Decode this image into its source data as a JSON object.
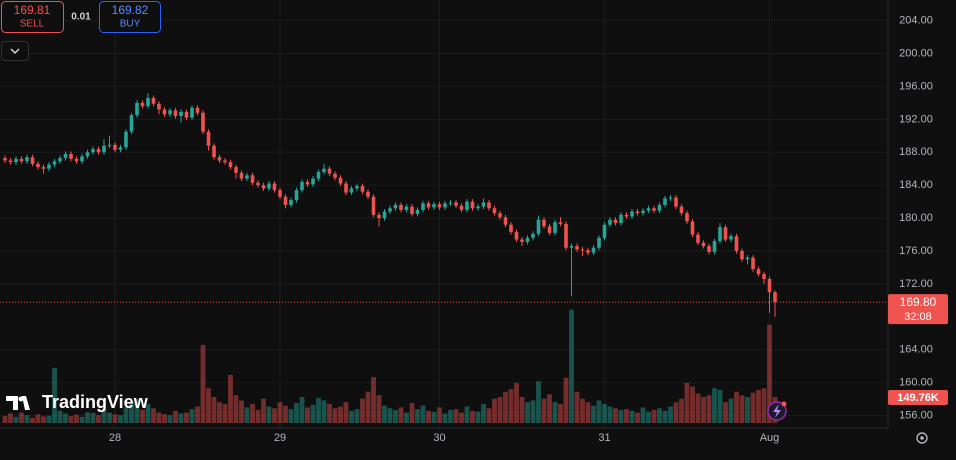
{
  "toolbar": {
    "sell_price": "169.81",
    "sell_label": "SELL",
    "spread": "0.01",
    "buy_price": "169.82",
    "buy_label": "BUY"
  },
  "logo": "TradingView",
  "chart_data": {
    "type": "candlestick",
    "up_color": "#26a69a",
    "down_color": "#ef5350",
    "grid": true,
    "ylim": [
      154.5,
      206.5
    ],
    "yticks": [
      {
        "value": 156,
        "label": "156.00"
      },
      {
        "value": 160,
        "label": "160.00"
      },
      {
        "value": 164,
        "label": "164.00"
      },
      {
        "value": 172,
        "label": "172.00"
      },
      {
        "value": 176,
        "label": "176.00"
      },
      {
        "value": 180,
        "label": "180.00"
      },
      {
        "value": 184,
        "label": "184.00"
      },
      {
        "value": 188,
        "label": "188.00"
      },
      {
        "value": 192,
        "label": "192.00"
      },
      {
        "value": 196,
        "label": "196.00"
      },
      {
        "value": 200,
        "label": "200.00"
      },
      {
        "value": 204,
        "label": "204.00"
      }
    ],
    "volume_lim": [
      0,
      1000
    ],
    "last_price": {
      "value": 169.8,
      "label": "169.80"
    },
    "countdown": "32:08",
    "last_volume_label": "149.76K",
    "categories": [
      null,
      null,
      null,
      null,
      null,
      null,
      null,
      null,
      null,
      null,
      null,
      null,
      null,
      null,
      null,
      null,
      null,
      null,
      null,
      null,
      "28",
      null,
      null,
      null,
      null,
      null,
      null,
      null,
      null,
      null,
      null,
      null,
      null,
      null,
      null,
      null,
      null,
      null,
      null,
      null,
      null,
      null,
      null,
      null,
      null,
      null,
      null,
      null,
      null,
      null,
      "29",
      null,
      null,
      null,
      null,
      null,
      null,
      null,
      null,
      null,
      null,
      null,
      null,
      null,
      null,
      null,
      null,
      null,
      null,
      null,
      null,
      null,
      null,
      null,
      null,
      null,
      null,
      null,
      null,
      "30",
      null,
      null,
      null,
      null,
      null,
      null,
      null,
      null,
      null,
      null,
      null,
      null,
      null,
      null,
      null,
      null,
      null,
      null,
      null,
      null,
      null,
      null,
      null,
      null,
      null,
      null,
      null,
      null,
      null,
      "31",
      null,
      null,
      null,
      null,
      null,
      null,
      null,
      null,
      null,
      null,
      null,
      null,
      null,
      null,
      null,
      null,
      null,
      null,
      null,
      null,
      null,
      null,
      null,
      null,
      null,
      null,
      null,
      null,
      null,
      "Aug",
      null
    ],
    "candles": [
      [
        187.3,
        187.6,
        186.7,
        187.0
      ],
      [
        187.0,
        187.3,
        186.5,
        186.8
      ],
      [
        186.8,
        187.5,
        186.5,
        187.2
      ],
      [
        187.2,
        187.5,
        186.6,
        186.9
      ],
      [
        186.9,
        187.7,
        186.6,
        187.4
      ],
      [
        187.4,
        187.7,
        186.3,
        186.6
      ],
      [
        186.6,
        186.9,
        185.9,
        186.2
      ],
      [
        186.2,
        186.5,
        185.4,
        186.0
      ],
      [
        186.0,
        186.8,
        185.7,
        186.5
      ],
      [
        186.5,
        187.2,
        186.2,
        186.9
      ],
      [
        186.9,
        187.6,
        186.6,
        187.3
      ],
      [
        187.3,
        188.1,
        187.0,
        187.8
      ],
      [
        187.8,
        188.1,
        186.9,
        187.2
      ],
      [
        187.2,
        187.5,
        186.6,
        186.9
      ],
      [
        186.9,
        187.8,
        186.6,
        187.5
      ],
      [
        187.5,
        188.3,
        187.2,
        188.0
      ],
      [
        188.0,
        188.7,
        187.7,
        188.4
      ],
      [
        188.4,
        188.7,
        187.7,
        188.0
      ],
      [
        188.0,
        189.6,
        187.7,
        188.8
      ],
      [
        188.8,
        190.0,
        188.5,
        188.9
      ],
      [
        188.9,
        189.2,
        188.0,
        188.3
      ],
      [
        188.3,
        188.9,
        188.0,
        188.6
      ],
      [
        188.6,
        190.8,
        188.3,
        190.5
      ],
      [
        190.5,
        192.8,
        190.2,
        192.5
      ],
      [
        192.5,
        194.3,
        192.2,
        194.0
      ],
      [
        194.0,
        194.3,
        193.3,
        193.6
      ],
      [
        193.6,
        195.2,
        193.3,
        194.6
      ],
      [
        194.6,
        194.9,
        193.6,
        193.9
      ],
      [
        193.9,
        194.2,
        192.6,
        193.2
      ],
      [
        193.2,
        193.5,
        192.3,
        192.6
      ],
      [
        192.6,
        193.4,
        192.3,
        193.1
      ],
      [
        193.1,
        193.4,
        192.1,
        192.4
      ],
      [
        192.4,
        193.2,
        191.6,
        192.9
      ],
      [
        192.9,
        193.2,
        191.9,
        192.2
      ],
      [
        192.2,
        193.7,
        191.9,
        193.4
      ],
      [
        193.4,
        193.7,
        192.5,
        192.8
      ],
      [
        192.8,
        193.1,
        190.2,
        190.5
      ],
      [
        190.5,
        190.8,
        188.2,
        188.8
      ],
      [
        188.8,
        189.1,
        187.1,
        187.4
      ],
      [
        187.4,
        187.7,
        186.7,
        187.0
      ],
      [
        187.0,
        187.3,
        186.5,
        186.8
      ],
      [
        186.8,
        187.1,
        185.9,
        186.2
      ],
      [
        186.2,
        186.5,
        184.8,
        185.5
      ],
      [
        185.5,
        185.8,
        184.5,
        184.8
      ],
      [
        184.8,
        185.5,
        184.5,
        185.2
      ],
      [
        185.2,
        185.5,
        184.0,
        184.3
      ],
      [
        184.3,
        184.6,
        183.7,
        184.0
      ],
      [
        184.0,
        184.3,
        183.3,
        183.6
      ],
      [
        183.6,
        184.5,
        183.3,
        184.2
      ],
      [
        184.2,
        184.5,
        183.1,
        183.4
      ],
      [
        183.4,
        183.7,
        182.3,
        182.6
      ],
      [
        182.6,
        182.9,
        181.2,
        181.6
      ],
      [
        181.6,
        182.5,
        181.3,
        182.2
      ],
      [
        182.2,
        183.7,
        181.9,
        183.4
      ],
      [
        183.4,
        184.7,
        183.1,
        184.4
      ],
      [
        184.4,
        184.7,
        183.8,
        184.1
      ],
      [
        184.1,
        185.1,
        183.8,
        184.8
      ],
      [
        184.8,
        185.9,
        184.5,
        185.6
      ],
      [
        185.6,
        186.6,
        185.3,
        186.0
      ],
      [
        186.0,
        186.3,
        185.1,
        185.4
      ],
      [
        185.4,
        185.7,
        184.6,
        184.9
      ],
      [
        184.9,
        185.2,
        183.9,
        184.2
      ],
      [
        184.2,
        184.5,
        182.8,
        183.1
      ],
      [
        183.1,
        183.9,
        182.8,
        183.6
      ],
      [
        183.6,
        184.2,
        183.3,
        183.9
      ],
      [
        183.9,
        184.2,
        182.9,
        183.2
      ],
      [
        183.2,
        183.5,
        182.3,
        182.6
      ],
      [
        182.6,
        182.9,
        180.1,
        180.4
      ],
      [
        180.4,
        180.7,
        179.0,
        180.0
      ],
      [
        180.0,
        181.1,
        179.7,
        180.8
      ],
      [
        180.8,
        181.5,
        180.5,
        181.2
      ],
      [
        181.2,
        181.9,
        180.9,
        181.6
      ],
      [
        181.6,
        181.9,
        180.7,
        181.0
      ],
      [
        181.0,
        181.7,
        180.7,
        181.4
      ],
      [
        181.4,
        181.7,
        180.2,
        180.5
      ],
      [
        180.5,
        181.3,
        180.2,
        181.0
      ],
      [
        181.0,
        182.1,
        180.7,
        181.8
      ],
      [
        181.8,
        182.1,
        181.0,
        181.3
      ],
      [
        181.3,
        182.0,
        181.0,
        181.7
      ],
      [
        181.7,
        182.0,
        181.0,
        181.3
      ],
      [
        181.3,
        182.1,
        181.0,
        181.8
      ],
      [
        181.8,
        182.2,
        181.5,
        181.9
      ],
      [
        181.9,
        182.2,
        181.2,
        181.5
      ],
      [
        181.5,
        181.8,
        180.7,
        181.0
      ],
      [
        181.0,
        182.3,
        180.7,
        182.0
      ],
      [
        182.0,
        182.3,
        180.9,
        181.2
      ],
      [
        181.2,
        181.7,
        180.9,
        181.4
      ],
      [
        181.4,
        182.4,
        181.1,
        181.9
      ],
      [
        181.9,
        182.2,
        180.9,
        181.2
      ],
      [
        181.2,
        181.5,
        180.3,
        180.6
      ],
      [
        180.6,
        180.9,
        179.8,
        180.1
      ],
      [
        180.1,
        180.4,
        178.9,
        179.2
      ],
      [
        179.2,
        179.5,
        178.0,
        178.3
      ],
      [
        178.3,
        178.6,
        177.1,
        177.4
      ],
      [
        177.4,
        177.7,
        176.6,
        177.1
      ],
      [
        177.1,
        177.9,
        176.8,
        177.6
      ],
      [
        177.6,
        178.4,
        177.3,
        178.1
      ],
      [
        178.1,
        180.3,
        177.8,
        179.8
      ],
      [
        179.8,
        180.1,
        178.7,
        179.0
      ],
      [
        179.0,
        179.3,
        177.9,
        178.2
      ],
      [
        178.2,
        179.8,
        177.9,
        179.5
      ],
      [
        179.5,
        180.1,
        179.0,
        179.3
      ],
      [
        179.3,
        179.6,
        176.1,
        176.4
      ],
      [
        176.4,
        176.9,
        170.5,
        176.6
      ],
      [
        176.6,
        176.9,
        175.9,
        176.2
      ],
      [
        176.2,
        176.5,
        175.4,
        176.1
      ],
      [
        176.1,
        176.4,
        175.5,
        175.8
      ],
      [
        175.8,
        176.7,
        175.5,
        176.4
      ],
      [
        176.4,
        177.9,
        176.1,
        177.6
      ],
      [
        177.6,
        179.5,
        177.3,
        179.2
      ],
      [
        179.2,
        180.1,
        178.9,
        179.8
      ],
      [
        179.8,
        180.1,
        179.1,
        179.4
      ],
      [
        179.4,
        180.7,
        179.1,
        180.4
      ],
      [
        180.4,
        180.7,
        179.9,
        180.2
      ],
      [
        180.2,
        181.1,
        179.9,
        180.8
      ],
      [
        180.8,
        181.1,
        180.3,
        180.6
      ],
      [
        180.6,
        181.2,
        180.3,
        180.9
      ],
      [
        180.9,
        181.5,
        180.6,
        181.2
      ],
      [
        181.2,
        181.5,
        180.6,
        180.9
      ],
      [
        180.9,
        181.9,
        180.6,
        181.6
      ],
      [
        181.6,
        182.7,
        181.3,
        182.4
      ],
      [
        182.4,
        182.8,
        182.1,
        182.5
      ],
      [
        182.5,
        182.8,
        181.1,
        181.4
      ],
      [
        181.4,
        181.7,
        180.3,
        180.6
      ],
      [
        180.6,
        180.9,
        179.3,
        179.6
      ],
      [
        179.6,
        179.9,
        177.7,
        178.0
      ],
      [
        178.0,
        178.3,
        176.7,
        177.0
      ],
      [
        177.0,
        177.3,
        176.3,
        176.6
      ],
      [
        176.6,
        176.9,
        175.6,
        175.9
      ],
      [
        175.9,
        177.5,
        175.6,
        177.2
      ],
      [
        177.2,
        179.4,
        176.9,
        178.9
      ],
      [
        178.9,
        179.2,
        177.1,
        177.4
      ],
      [
        177.4,
        178.1,
        177.1,
        177.8
      ],
      [
        177.8,
        178.1,
        175.7,
        176.0
      ],
      [
        176.0,
        176.3,
        174.7,
        175.0
      ],
      [
        175.0,
        175.5,
        174.4,
        175.2
      ],
      [
        175.2,
        175.5,
        173.5,
        173.8
      ],
      [
        173.8,
        174.1,
        172.9,
        173.2
      ],
      [
        173.2,
        173.5,
        172.0,
        172.6
      ],
      [
        172.6,
        172.9,
        168.5,
        171.0
      ],
      [
        171.0,
        171.2,
        168.0,
        169.8
      ]
    ],
    "volume": [
      40,
      55,
      35,
      60,
      45,
      30,
      50,
      38,
      42,
      318,
      70,
      55,
      40,
      48,
      35,
      62,
      58,
      45,
      80,
      60,
      50,
      45,
      90,
      120,
      140,
      75,
      110,
      85,
      60,
      50,
      45,
      70,
      55,
      60,
      80,
      95,
      450,
      200,
      150,
      120,
      110,
      277,
      160,
      130,
      90,
      110,
      75,
      140,
      95,
      85,
      120,
      100,
      80,
      115,
      150,
      90,
      105,
      145,
      130,
      110,
      85,
      95,
      120,
      70,
      80,
      140,
      180,
      265,
      160,
      100,
      85,
      75,
      90,
      60,
      115,
      80,
      100,
      70,
      65,
      90,
      55,
      75,
      80,
      60,
      95,
      70,
      65,
      110,
      85,
      140,
      150,
      180,
      195,
      230,
      150,
      120,
      130,
      240,
      140,
      165,
      120,
      110,
      260,
      653,
      180,
      140,
      120,
      100,
      130,
      110,
      95,
      85,
      75,
      80,
      70,
      60,
      90,
      65,
      75,
      85,
      70,
      95,
      120,
      140,
      231,
      210,
      170,
      150,
      160,
      200,
      190,
      120,
      140,
      180,
      160,
      150,
      175,
      190,
      200,
      566,
      149.76
    ]
  }
}
